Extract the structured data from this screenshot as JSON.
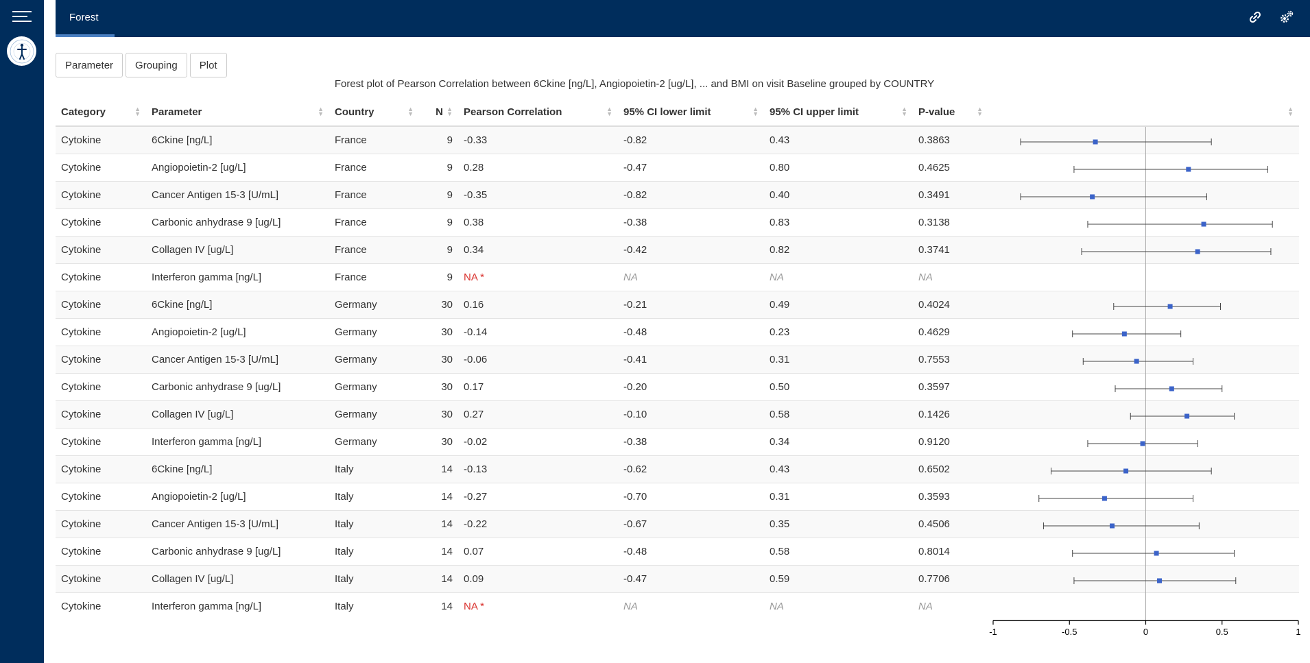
{
  "app": {
    "tab": "Forest"
  },
  "buttons": {
    "parameter": "Parameter",
    "grouping": "Grouping",
    "plot": "Plot"
  },
  "plot_title": "Forest plot of Pearson Correlation between 6Ckine [ng/L], Angiopoietin-2 [ug/L], ... and BMI on visit Baseline grouped by COUNTRY",
  "table": {
    "headers": [
      "Category",
      "Parameter",
      "Country",
      "N",
      "Pearson Correlation",
      "95% CI lower limit",
      "95% CI upper limit",
      "P-value"
    ],
    "rows": [
      {
        "category": "Cytokine",
        "parameter": "6Ckine [ng/L]",
        "country": "France",
        "n": "9",
        "r": "-0.33",
        "lo": "-0.82",
        "hi": "0.43",
        "p": "0.3863"
      },
      {
        "category": "Cytokine",
        "parameter": "Angiopoietin-2 [ug/L]",
        "country": "France",
        "n": "9",
        "r": "0.28",
        "lo": "-0.47",
        "hi": "0.80",
        "p": "0.4625"
      },
      {
        "category": "Cytokine",
        "parameter": "Cancer Antigen 15-3 [U/mL]",
        "country": "France",
        "n": "9",
        "r": "-0.35",
        "lo": "-0.82",
        "hi": "0.40",
        "p": "0.3491"
      },
      {
        "category": "Cytokine",
        "parameter": "Carbonic anhydrase 9 [ug/L]",
        "country": "France",
        "n": "9",
        "r": "0.38",
        "lo": "-0.38",
        "hi": "0.83",
        "p": "0.3138"
      },
      {
        "category": "Cytokine",
        "parameter": "Collagen IV [ug/L]",
        "country": "France",
        "n": "9",
        "r": "0.34",
        "lo": "-0.42",
        "hi": "0.82",
        "p": "0.3741"
      },
      {
        "category": "Cytokine",
        "parameter": "Interferon gamma [ng/L]",
        "country": "France",
        "n": "9",
        "r": "NA *",
        "lo": "NA",
        "hi": "NA",
        "p": "NA",
        "na": true
      },
      {
        "category": "Cytokine",
        "parameter": "6Ckine [ng/L]",
        "country": "Germany",
        "n": "30",
        "r": "0.16",
        "lo": "-0.21",
        "hi": "0.49",
        "p": "0.4024"
      },
      {
        "category": "Cytokine",
        "parameter": "Angiopoietin-2 [ug/L]",
        "country": "Germany",
        "n": "30",
        "r": "-0.14",
        "lo": "-0.48",
        "hi": "0.23",
        "p": "0.4629"
      },
      {
        "category": "Cytokine",
        "parameter": "Cancer Antigen 15-3 [U/mL]",
        "country": "Germany",
        "n": "30",
        "r": "-0.06",
        "lo": "-0.41",
        "hi": "0.31",
        "p": "0.7553"
      },
      {
        "category": "Cytokine",
        "parameter": "Carbonic anhydrase 9 [ug/L]",
        "country": "Germany",
        "n": "30",
        "r": "0.17",
        "lo": "-0.20",
        "hi": "0.50",
        "p": "0.3597"
      },
      {
        "category": "Cytokine",
        "parameter": "Collagen IV [ug/L]",
        "country": "Germany",
        "n": "30",
        "r": "0.27",
        "lo": "-0.10",
        "hi": "0.58",
        "p": "0.1426"
      },
      {
        "category": "Cytokine",
        "parameter": "Interferon gamma [ng/L]",
        "country": "Germany",
        "n": "30",
        "r": "-0.02",
        "lo": "-0.38",
        "hi": "0.34",
        "p": "0.9120"
      },
      {
        "category": "Cytokine",
        "parameter": "6Ckine [ng/L]",
        "country": "Italy",
        "n": "14",
        "r": "-0.13",
        "lo": "-0.62",
        "hi": "0.43",
        "p": "0.6502"
      },
      {
        "category": "Cytokine",
        "parameter": "Angiopoietin-2 [ug/L]",
        "country": "Italy",
        "n": "14",
        "r": "-0.27",
        "lo": "-0.70",
        "hi": "0.31",
        "p": "0.3593"
      },
      {
        "category": "Cytokine",
        "parameter": "Cancer Antigen 15-3 [U/mL]",
        "country": "Italy",
        "n": "14",
        "r": "-0.22",
        "lo": "-0.67",
        "hi": "0.35",
        "p": "0.4506"
      },
      {
        "category": "Cytokine",
        "parameter": "Carbonic anhydrase 9 [ug/L]",
        "country": "Italy",
        "n": "14",
        "r": "0.07",
        "lo": "-0.48",
        "hi": "0.58",
        "p": "0.8014"
      },
      {
        "category": "Cytokine",
        "parameter": "Collagen IV [ug/L]",
        "country": "Italy",
        "n": "14",
        "r": "0.09",
        "lo": "-0.47",
        "hi": "0.59",
        "p": "0.7706"
      },
      {
        "category": "Cytokine",
        "parameter": "Interferon gamma [ng/L]",
        "country": "Italy",
        "n": "14",
        "r": "NA *",
        "lo": "NA",
        "hi": "NA",
        "p": "NA",
        "na": true
      }
    ]
  },
  "chart_data": {
    "type": "scatter",
    "title": "",
    "xlabel": "",
    "ylabel": "",
    "xlim": [
      -1,
      1
    ],
    "xticks": [
      "-1",
      "-0.5",
      "0",
      "0.5",
      "1"
    ],
    "reference_line": 0,
    "series": [
      {
        "name": "Pearson Correlation",
        "estimates": [
          -0.33,
          0.28,
          -0.35,
          0.38,
          0.34,
          null,
          0.16,
          -0.14,
          -0.06,
          0.17,
          0.27,
          -0.02,
          -0.13,
          -0.27,
          -0.22,
          0.07,
          0.09,
          null
        ],
        "lower": [
          -0.82,
          -0.47,
          -0.82,
          -0.38,
          -0.42,
          null,
          -0.21,
          -0.48,
          -0.41,
          -0.2,
          -0.1,
          -0.38,
          -0.62,
          -0.7,
          -0.67,
          -0.48,
          -0.47,
          null
        ],
        "upper": [
          0.43,
          0.8,
          0.4,
          0.83,
          0.82,
          null,
          0.49,
          0.23,
          0.31,
          0.5,
          0.58,
          0.34,
          0.43,
          0.31,
          0.35,
          0.58,
          0.59,
          null
        ]
      }
    ],
    "colors": {
      "marker": "#3b63c9",
      "line": "#444444",
      "reference": "#aaaaaa"
    }
  }
}
